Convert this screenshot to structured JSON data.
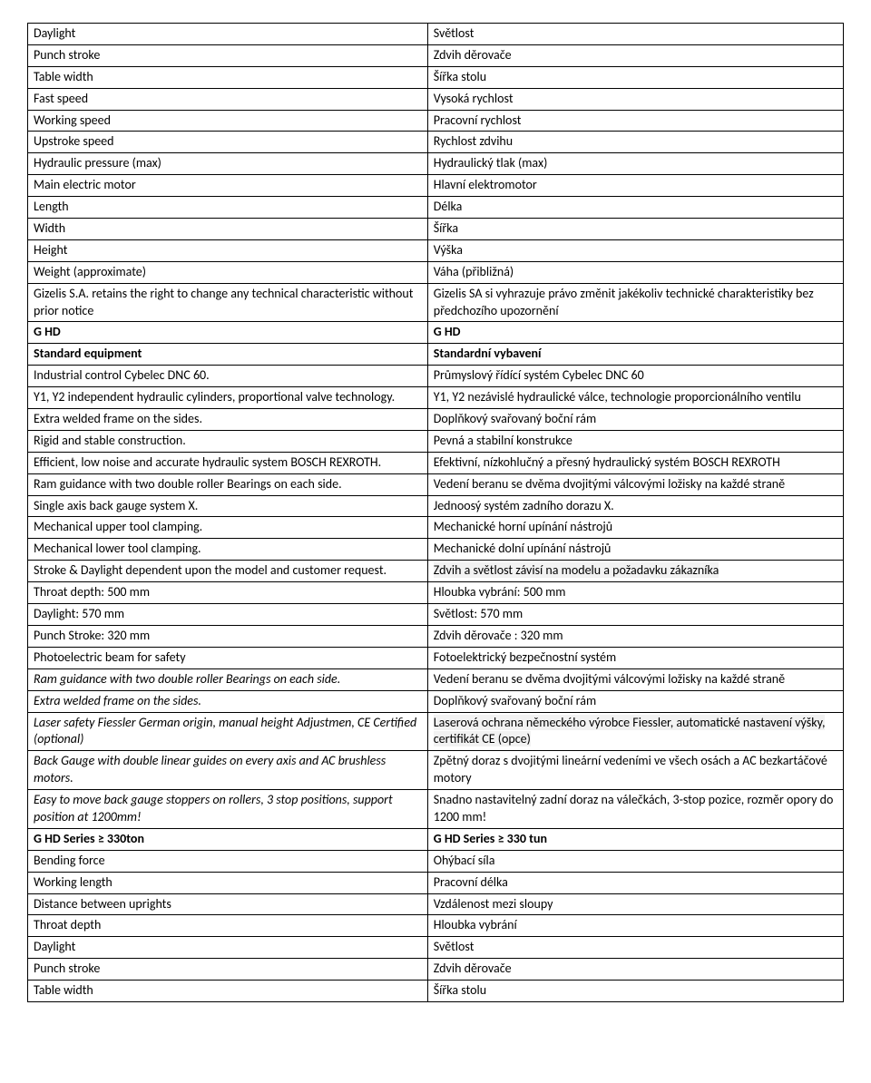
{
  "rows": [
    {
      "en": "Daylight",
      "cz": "Světlost"
    },
    {
      "en": "Punch stroke",
      "cz": "Zdvih děrovače"
    },
    {
      "en": "Table width",
      "cz": "Šířka stolu"
    },
    {
      "en": "Fast speed",
      "cz": "Vysoká rychlost"
    },
    {
      "en": "Working speed",
      "cz": "Pracovní rychlost"
    },
    {
      "en": "Upstroke speed",
      "cz": "Rychlost zdvihu"
    },
    {
      "en": "Hydraulic pressure (max)",
      "cz": "Hydraulický tlak (max)"
    },
    {
      "en": "Main electric motor",
      "cz": "Hlavní elektromotor"
    },
    {
      "en": "Length",
      "cz": "Délka"
    },
    {
      "en": "Width",
      "cz": "Šířka"
    },
    {
      "en": "Height",
      "cz": "Výška"
    },
    {
      "en": "Weight (approximate)",
      "cz": "Váha (přibližná)"
    },
    {
      "en": "Gizelis S.A. retains the right to change any technical characteristic without prior notice",
      "cz": "Gizelis SA si vyhrazuje právo změnit jakékoliv technické charakteristiky bez předchozího upozornění"
    },
    {
      "en": "G HD",
      "cz": "G HD",
      "bold": true
    },
    {
      "en": "Standard equipment",
      "cz": "Standardní vybavení",
      "bold": true
    },
    {
      "en": "Industrial control Cybelec DNC 60.",
      "cz": "Průmyslový řídící systém Cybelec DNC 60"
    },
    {
      "en": "Y1, Y2 independent hydraulic cylinders, proportional valve technology.",
      "cz": "Y1, Y2 nezávislé hydraulické válce, technologie proporcionálního ventilu"
    },
    {
      "en": "Extra welded frame on the sides.",
      "cz": "Doplňkový svařovaný boční rám"
    },
    {
      "en": "Rigid and stable construction.",
      "cz": "Pevná a stabilní konstrukce"
    },
    {
      "en": "Efficient, low noise and accurate\nhydraulic system BOSCH REXROTH.",
      "cz": "Efektivní, nízkohlučný a přesný hydraulický systém BOSCH REXROTH"
    },
    {
      "en": "Ram guidance with two double roller\nBearings on each side.",
      "cz": "Vedení beranu se dvěma dvojitými válcovými ložisky na každé straně"
    },
    {
      "en": "Single axis back gauge system X.",
      "cz": "Jednoosý systém zadního dorazu X."
    },
    {
      "en": "Mechanical upper tool clamping.",
      "cz": "Mechanické horní upínání nástrojů"
    },
    {
      "en": "Mechanical lower tool clamping.",
      "cz": "Mechanické dolní upínání nástrojů"
    },
    {
      "en": "Stroke & Daylight dependent upon\nthe model and customer request.",
      "cz": "Zdvih a světlost závisí na modelu a požadavku zákazníka",
      "cz_hl": true
    },
    {
      "en": "Throat depth: 500 mm",
      "cz": "Hloubka vybrání: 500 mm"
    },
    {
      "en": "Daylight: 570 mm",
      "cz": "Světlost: 570 mm"
    },
    {
      "en": "Punch Stroke: 320 mm",
      "cz": "Zdvih děrovače : 320 mm"
    },
    {
      "en": "Photoelectric beam for safety",
      "cz": "Fotoelektrický bezpečnostní systém"
    },
    {
      "en": "Ram guidance with two double roller\nBearings on each side.",
      "en_italic": true,
      "cz": "Vedení beranu se dvěma dvojitými válcovými ložisky na každé straně"
    },
    {
      "en": "Extra welded frame on the sides.",
      "en_italic": true,
      "cz": "Doplňkový svařovaný boční rám"
    },
    {
      "en": "Laser safety Fiessler German origin, manual height\nAdjustmen, CE Certified (optional)",
      "en_italic": true,
      "cz": "Laserová ochrana německého výrobce Fiessler, automatické nastavení výšky, certifikát CE (opce)",
      "cz_hl": true
    },
    {
      "en": "Back Gauge with double linear guides on every axis and AC brushless motors.",
      "en_italic": true,
      "cz": "Zpětný doraz s dvojitými lineární vedeními ve všech osách a AC bezkartáčové motory"
    },
    {
      "en": "Easy to move back gauge stoppers on rollers, 3 stop positions, support position at 1200mm!",
      "en_italic": true,
      "cz": "Snadno nastavitelný zadní doraz na válečkách, 3-stop pozice, rozměr opory do 1200 mm!"
    },
    {
      "en": "G HD Series ≥ 330ton",
      "cz": "G HD Series ≥ 330 tun",
      "bold": true
    },
    {
      "en": "Bending force",
      "cz": "Ohýbací síla"
    },
    {
      "en": "Working length",
      "cz": "Pracovní délka"
    },
    {
      "en": "Distance between uprights",
      "cz": "Vzdálenost mezi sloupy"
    },
    {
      "en": "Throat depth",
      "cz": "Hloubka vybrání"
    },
    {
      "en": "Daylight",
      "cz": "Světlost"
    },
    {
      "en": "Punch stroke",
      "cz": "Zdvih děrovače"
    },
    {
      "en": "Table width",
      "cz": "Šířka stolu"
    }
  ]
}
